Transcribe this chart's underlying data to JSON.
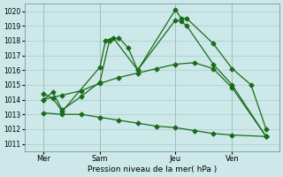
{
  "xlabel": "Pression niveau de la mer( hPa )",
  "ylim": [
    1010.5,
    1020.5
  ],
  "yticks": [
    1011,
    1012,
    1013,
    1014,
    1015,
    1016,
    1017,
    1018,
    1019,
    1020
  ],
  "bg_color": "#cce8e8",
  "grid_color": "#aacccc",
  "line_color": "#1a6b1a",
  "xtick_labels": [
    "Mer",
    "Sam",
    "Jeu",
    "Ven"
  ],
  "xtick_positions": [
    1,
    4,
    8,
    11
  ],
  "xlim": [
    0,
    13.5
  ],
  "t1": [
    1,
    1.5,
    2,
    3,
    4,
    4.5,
    5,
    5.5,
    6,
    8,
    8.3,
    8.6,
    10,
    11,
    12,
    12.8
  ],
  "v1": [
    1014.0,
    1014.5,
    1013.3,
    1014.2,
    1015.2,
    1018.0,
    1018.2,
    1017.5,
    1016.0,
    1020.1,
    1019.5,
    1019.5,
    1017.8,
    1016.1,
    1015.0,
    1012.0
  ],
  "t2": [
    1,
    1.5,
    2,
    4,
    4.3,
    4.7,
    6,
    8,
    8.3,
    8.6,
    10,
    11,
    12.8
  ],
  "v2": [
    1014.4,
    1014.1,
    1013.2,
    1016.2,
    1018.0,
    1018.2,
    1016.0,
    1019.4,
    1019.3,
    1019.0,
    1016.4,
    1015.0,
    1011.5
  ],
  "t3": [
    1,
    2,
    3,
    4,
    5,
    6,
    7,
    8,
    9,
    10,
    11,
    12.8
  ],
  "v3": [
    1014.0,
    1014.3,
    1014.6,
    1015.1,
    1015.5,
    1015.8,
    1016.1,
    1016.4,
    1016.5,
    1016.1,
    1014.8,
    1011.5
  ],
  "t4": [
    1,
    2,
    3,
    4,
    5,
    6,
    7,
    8,
    9,
    10,
    11,
    12.8
  ],
  "v4": [
    1013.1,
    1013.0,
    1013.0,
    1012.8,
    1012.6,
    1012.4,
    1012.2,
    1012.1,
    1011.9,
    1011.7,
    1011.6,
    1011.5
  ]
}
